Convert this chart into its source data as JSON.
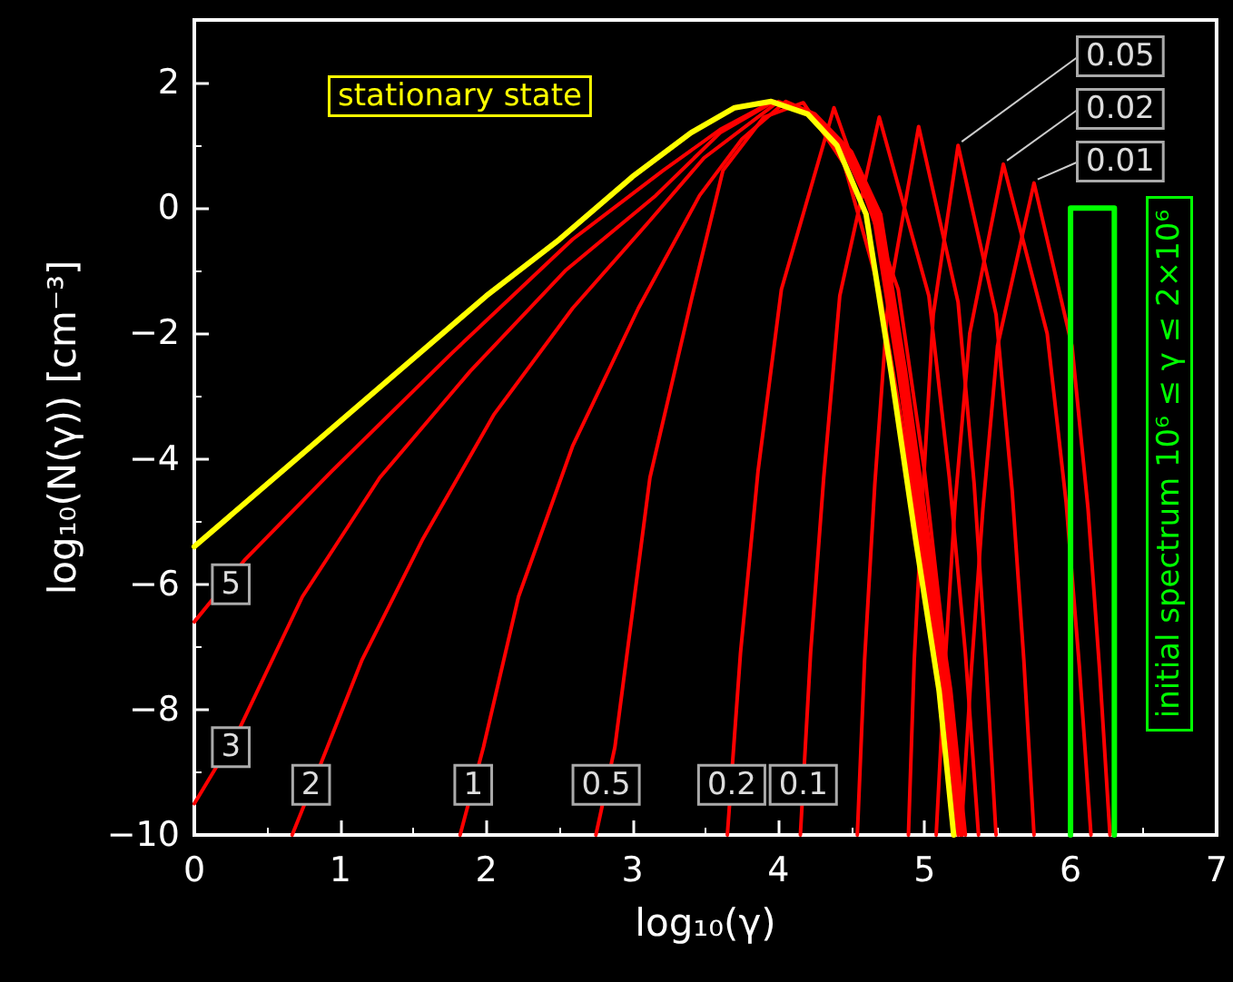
{
  "chart_data": {
    "type": "line",
    "xlabel": "log₁₀(γ)",
    "ylabel": "log₁₀(N(γ)) [cm⁻³]",
    "xlim": [
      0,
      7
    ],
    "xticks": [
      0,
      1,
      2,
      3,
      4,
      5,
      6,
      7
    ],
    "ylim": [
      -10,
      3
    ],
    "yticks": [
      -10,
      -8,
      -6,
      -4,
      -2,
      0,
      2
    ],
    "grid": false,
    "series": [
      {
        "color": "#ff0000",
        "x": [
          0,
          0.35,
          0.94,
          1.77,
          2.59,
          3.21,
          3.6,
          3.96,
          4.2,
          4.45,
          4.65,
          4.82,
          4.98,
          5.13,
          5.23
        ],
        "values": [
          -6.6,
          -5.6,
          -4.2,
          -2.3,
          -0.5,
          0.6,
          1.25,
          1.7,
          1.5,
          0.9,
          -0.1,
          -2.6,
          -5.3,
          -7.7,
          -10
        ]
      },
      {
        "color": "#ff0000",
        "x": [
          0,
          0.31,
          0.74,
          1.27,
          1.89,
          2.54,
          3.16,
          3.6,
          3.97,
          4.22,
          4.47,
          4.67,
          4.84,
          5.0,
          5.15,
          5.25
        ],
        "values": [
          -9.5,
          -8.3,
          -6.2,
          -4.3,
          -2.6,
          -1.0,
          0.2,
          1.2,
          1.7,
          1.5,
          0.9,
          -0.1,
          -2.6,
          -5.3,
          -7.7,
          -10
        ]
      },
      {
        "color": "#ff0000",
        "x": [
          0.67,
          0.86,
          1.15,
          1.56,
          2.05,
          2.59,
          3.12,
          3.49,
          4.0,
          4.23,
          4.48,
          4.68,
          4.85,
          5.01,
          5.16,
          5.26
        ],
        "values": [
          -10,
          -8.9,
          -7.2,
          -5.3,
          -3.3,
          -1.6,
          -0.2,
          0.8,
          1.7,
          1.5,
          0.9,
          -0.1,
          -2.6,
          -5.3,
          -7.7,
          -10
        ]
      },
      {
        "color": "#ff0000",
        "x": [
          1.82,
          1.98,
          2.22,
          2.59,
          3.04,
          3.46,
          3.75,
          4.05,
          4.25,
          4.5,
          4.7,
          4.87,
          5.03,
          5.18,
          5.28
        ],
        "values": [
          -10,
          -8.6,
          -6.2,
          -3.8,
          -1.6,
          0.2,
          1.1,
          1.7,
          1.5,
          0.9,
          -0.1,
          -2.6,
          -5.3,
          -7.7,
          -10
        ]
      },
      {
        "color": "#ff0000",
        "x": [
          2.75,
          2.88,
          3.12,
          3.41,
          3.62,
          3.9,
          4.17,
          4.45,
          4.69,
          4.9,
          5.07,
          5.2
        ],
        "values": [
          -10,
          -8.6,
          -4.3,
          -1.4,
          0.6,
          1.45,
          1.68,
          0.7,
          -1.3,
          -4.2,
          -7.1,
          -10
        ]
      },
      {
        "color": "#ff0000",
        "x": [
          3.65,
          3.74,
          3.86,
          4.02,
          4.38,
          4.82,
          5.0,
          5.14,
          5.25
        ],
        "values": [
          -10,
          -7.1,
          -4.2,
          -1.3,
          1.6,
          -1.3,
          -4.2,
          -7.1,
          -10
        ]
      },
      {
        "color": "#ff0000",
        "x": [
          4.15,
          4.22,
          4.31,
          4.42,
          4.69,
          5.03,
          5.17,
          5.28,
          5.37
        ],
        "values": [
          -10,
          -7.1,
          -4.3,
          -1.4,
          1.45,
          -1.4,
          -4.3,
          -7.1,
          -10
        ]
      },
      {
        "color": "#ff0000",
        "x": [
          4.54,
          4.59,
          4.66,
          4.75,
          4.96,
          5.23,
          5.34,
          5.42,
          5.49
        ],
        "values": [
          -10,
          -7.2,
          -4.4,
          -1.5,
          1.3,
          -1.5,
          -4.4,
          -7.2,
          -10
        ]
      },
      {
        "color": "#ff0000",
        "x": [
          4.89,
          4.93,
          4.99,
          5.06,
          5.23,
          5.49,
          5.6,
          5.68,
          5.75
        ],
        "values": [
          -10,
          -7.2,
          -4.5,
          -1.7,
          1.0,
          -1.7,
          -4.5,
          -7.2,
          -10
        ]
      },
      {
        "color": "#ff0000",
        "x": [
          5.08,
          5.14,
          5.21,
          5.31,
          5.54,
          5.84,
          5.97,
          6.06,
          6.14
        ],
        "values": [
          -10,
          -7.3,
          -4.7,
          -2.0,
          0.7,
          -2.0,
          -4.7,
          -7.3,
          -10
        ]
      },
      {
        "color": "#ff0000",
        "x": [
          5.25,
          5.32,
          5.4,
          5.5,
          5.75,
          6.01,
          6.12,
          6.2,
          6.27
        ],
        "values": [
          -10,
          -7.4,
          -4.8,
          -2.2,
          0.4,
          -2.2,
          -4.8,
          -7.4,
          -10
        ]
      },
      {
        "name": "initial spectrum 10⁶ ≤ γ ≤ 2×10⁶",
        "color": "#00ff00",
        "x": [
          6,
          6,
          6.3,
          6.3
        ],
        "values": [
          -10,
          0,
          0,
          -10
        ]
      },
      {
        "name": "stationary state",
        "color": "#ffff00",
        "x": [
          0,
          1,
          2,
          2.5,
          3,
          3.4,
          3.7,
          3.95,
          4.2,
          4.4,
          4.6,
          4.77,
          4.94,
          5.1,
          5.2
        ],
        "values": [
          -5.4,
          -3.4,
          -1.4,
          -0.5,
          0.5,
          1.2,
          1.6,
          1.7,
          1.5,
          1.0,
          -0.1,
          -2.6,
          -5.3,
          -7.7,
          -10
        ]
      }
    ],
    "annotations": [
      {
        "text": "5",
        "x": 0.25,
        "y": -6.0
      },
      {
        "text": "3",
        "x": 0.25,
        "y": -8.6
      },
      {
        "text": "2",
        "x": 0.8,
        "y": -9.2
      },
      {
        "text": "1",
        "x": 1.91,
        "y": -9.2
      },
      {
        "text": "0.5",
        "x": 2.82,
        "y": -9.2
      },
      {
        "text": "0.2",
        "x": 3.68,
        "y": -9.2
      },
      {
        "text": "0.1",
        "x": 4.17,
        "y": -9.2
      },
      {
        "text": "0.05",
        "x": 5.23,
        "y": 1.0
      },
      {
        "text": "0.02",
        "x": 5.54,
        "y": 0.7
      },
      {
        "text": "0.01",
        "x": 5.75,
        "y": 0.4
      }
    ]
  }
}
